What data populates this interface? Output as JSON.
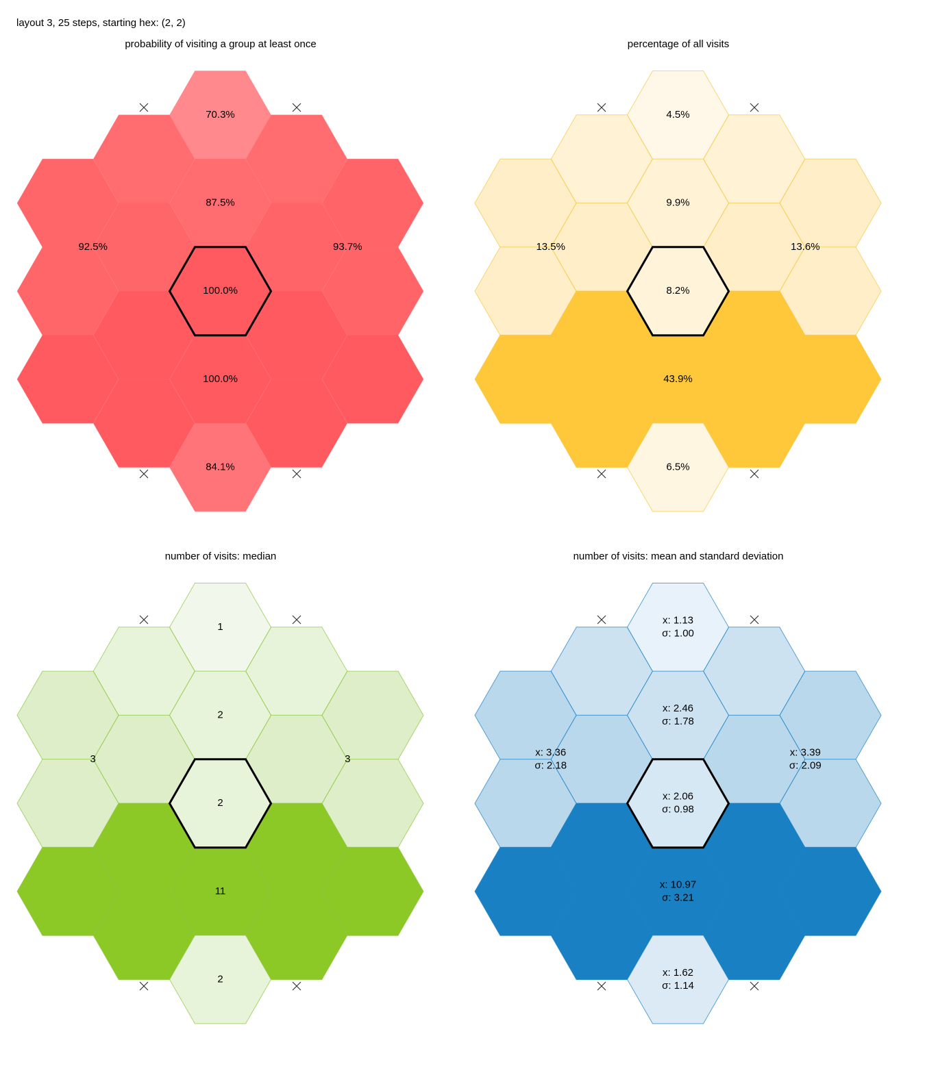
{
  "header": {
    "title": "layout 3, 25 steps, starting hex: (2, 2)"
  },
  "panels": [
    {
      "title": "probability of visiting a group at least once",
      "stroke": "#ff6a6e",
      "groups": [
        {
          "label": [
            "70.3%"
          ],
          "fill": "#ff898d"
        },
        {
          "label": [
            "87.5%"
          ],
          "fill": "#ff6d71"
        },
        {
          "label": [
            "92.5%"
          ],
          "fill": "#ff666a"
        },
        {
          "label": [
            "93.7%"
          ],
          "fill": "#ff6468"
        },
        {
          "label": [
            "100.0%"
          ],
          "fill": "#ff5a5f"
        },
        {
          "label": [
            "100.0%"
          ],
          "fill": "#ff5a5f"
        },
        {
          "label": [
            "84.1%"
          ],
          "fill": "#ff7478"
        }
      ]
    },
    {
      "title": "percentage of all visits",
      "stroke": "#f5c842",
      "groups": [
        {
          "label": [
            "4.5%"
          ],
          "fill": "#fff8e9"
        },
        {
          "label": [
            "9.9%"
          ],
          "fill": "#fff2d5"
        },
        {
          "label": [
            "13.5%"
          ],
          "fill": "#ffeec7"
        },
        {
          "label": [
            "13.6%"
          ],
          "fill": "#ffeec7"
        },
        {
          "label": [
            "8.2%"
          ],
          "fill": "#fff4da"
        },
        {
          "label": [
            "43.9%"
          ],
          "fill": "#fec83a"
        },
        {
          "label": [
            "6.5%"
          ],
          "fill": "#fff6e2"
        }
      ]
    },
    {
      "title": "number of visits: median",
      "stroke": "#8cc63f",
      "groups": [
        {
          "label": [
            "1"
          ],
          "fill": "#f1f8eb"
        },
        {
          "label": [
            "2"
          ],
          "fill": "#e8f4da"
        },
        {
          "label": [
            "3"
          ],
          "fill": "#ddeec8"
        },
        {
          "label": [
            "3"
          ],
          "fill": "#ddeec8"
        },
        {
          "label": [
            "2"
          ],
          "fill": "#e8f4da"
        },
        {
          "label": [
            "11"
          ],
          "fill": "#8cc826"
        },
        {
          "label": [
            "2"
          ],
          "fill": "#e8f4da"
        }
      ]
    },
    {
      "title": "number of visits: mean and standard deviation",
      "stroke": "#1a80c4",
      "groups": [
        {
          "label": [
            "x: 1.13",
            "σ: 1.00"
          ],
          "fill": "#e8f2fa"
        },
        {
          "label": [
            "x: 2.46",
            "σ: 1.78"
          ],
          "fill": "#cde2f1"
        },
        {
          "label": [
            "x: 3.36",
            "σ: 2.18"
          ],
          "fill": "#bad8ec"
        },
        {
          "label": [
            "x: 3.39",
            "σ: 2.09"
          ],
          "fill": "#bad8ec"
        },
        {
          "label": [
            "x: 2.06",
            "σ: 0.98"
          ],
          "fill": "#d6e8f4"
        },
        {
          "label": [
            "x: 10.97",
            "σ: 3.21"
          ],
          "fill": "#1a80c4"
        },
        {
          "label": [
            "x: 1.62",
            "σ: 1.14"
          ],
          "fill": "#dceaf5"
        }
      ]
    }
  ]
}
